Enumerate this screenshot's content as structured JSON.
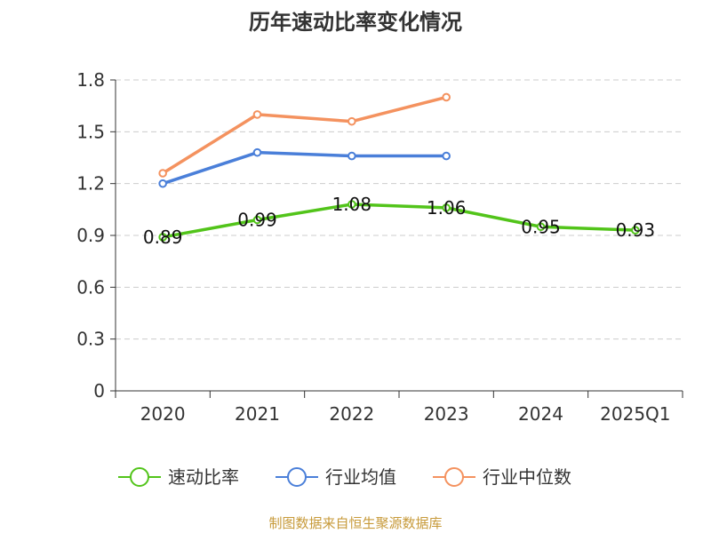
{
  "chart_data": {
    "type": "line",
    "title": "历年速动比率变化情况",
    "categories": [
      "2020",
      "2021",
      "2022",
      "2023",
      "2024",
      "2025Q1"
    ],
    "ylim": [
      0,
      1.8
    ],
    "yticks": [
      "0",
      "0.3",
      "0.6",
      "0.9",
      "1.2",
      "1.5",
      "1.8"
    ],
    "grid": true,
    "legend_position": "bottom",
    "series": [
      {
        "name": "速动比率",
        "color": "#52c41a",
        "show_labels": true,
        "values": [
          0.89,
          0.99,
          1.08,
          1.06,
          0.95,
          0.93
        ],
        "labels": [
          "0.89",
          "0.99",
          "1.08",
          "1.06",
          "0.95",
          "0.93"
        ]
      },
      {
        "name": "行业均值",
        "color": "#4a7fd9",
        "show_labels": false,
        "values": [
          1.2,
          1.38,
          1.36,
          1.36,
          null,
          null
        ]
      },
      {
        "name": "行业中位数",
        "color": "#f4925f",
        "show_labels": false,
        "values": [
          1.26,
          1.6,
          1.56,
          1.7,
          null,
          null
        ]
      }
    ]
  },
  "source": {
    "text": "制图数据来自恒生聚源数据库",
    "color": "#c79a3a"
  }
}
